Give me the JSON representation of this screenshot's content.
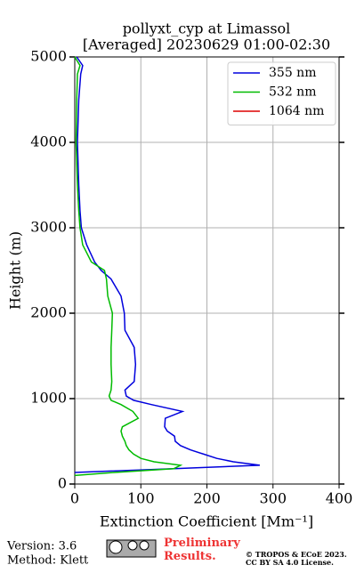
{
  "chart_data": {
    "type": "line",
    "title": "pollyxt_cyp at Limassol",
    "subtitle": "[Averaged] 20230629 01:00-02:30",
    "xlabel": "Extinction Coefficient [Mm⁻¹]",
    "ylabel": "Height (m)",
    "y": [
      100,
      135,
      180,
      220,
      260,
      300,
      350,
      400,
      450,
      500,
      560,
      620,
      670,
      770,
      850,
      930,
      980,
      1030,
      1100,
      1200,
      1400,
      1600,
      1800,
      2000,
      2200,
      2400,
      2500,
      2600,
      2800,
      3000,
      3200,
      3500,
      4000,
      4500,
      4800,
      4900,
      5000
    ],
    "series": [
      {
        "name": "355 nm",
        "color": "#0000dd",
        "values": [
          null,
          0,
          150,
          280,
          240,
          215,
          195,
          175,
          160,
          152,
          151,
          140,
          136,
          137,
          163,
          116,
          89,
          78,
          76,
          90,
          92,
          90,
          76,
          75,
          70,
          55,
          40,
          30,
          18,
          10,
          8,
          6,
          4,
          6,
          9,
          12,
          3
        ]
      },
      {
        "name": "532 nm",
        "color": "#00bb00",
        "values": [
          0,
          60,
          150,
          160,
          120,
          100,
          89,
          82,
          78,
          76,
          72,
          70,
          72,
          96,
          88,
          70,
          55,
          52,
          55,
          56,
          55,
          55,
          56,
          57,
          50,
          48,
          45,
          25,
          12,
          8,
          6,
          4,
          2,
          3,
          4,
          8,
          0
        ]
      },
      {
        "name": "1064 nm",
        "color": "#dd0000",
        "values": [
          null,
          null,
          null,
          null,
          null,
          null,
          null,
          null,
          null,
          null,
          null,
          null,
          null,
          null,
          null,
          null,
          null,
          null,
          null,
          null,
          null,
          null,
          null,
          null,
          null,
          null,
          null,
          null,
          null,
          null,
          null,
          null,
          null,
          null,
          null,
          null,
          null
        ]
      }
    ],
    "xlim": [
      0,
      400
    ],
    "xticks": [
      0,
      100,
      200,
      300,
      400
    ],
    "ylim": [
      0,
      5000
    ],
    "yticks": [
      0,
      1000,
      2000,
      3000,
      4000,
      5000
    ],
    "grid": true,
    "legend": "upper right"
  },
  "footer": {
    "version": "Version: 3.6",
    "method": "Method: Klett",
    "notice": "Preliminary Results.",
    "copyright": "© TROPOS & ECoE 2023.",
    "license": "CC BY SA 4.0 License."
  }
}
